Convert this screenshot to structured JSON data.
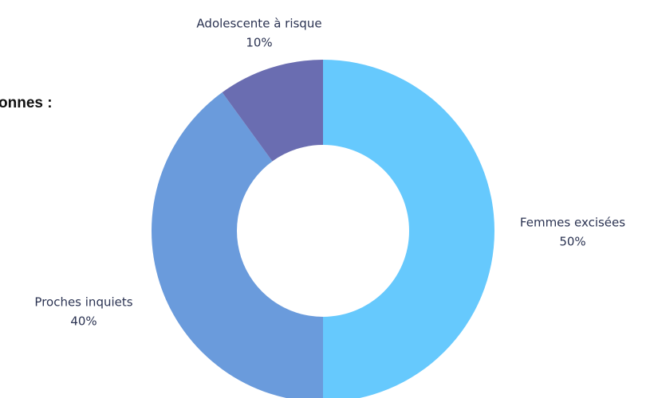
{
  "chart_data": {
    "type": "pie",
    "title": "onnes :",
    "categories": [
      "Femmes excisées",
      "Proches inquiets",
      "Adolescente à risque"
    ],
    "values": [
      50,
      40,
      10
    ],
    "value_labels": [
      "50%",
      "40%",
      "10%"
    ],
    "colors": [
      "#66c9fd",
      "#6a9bdc",
      "#6a6db1"
    ]
  }
}
